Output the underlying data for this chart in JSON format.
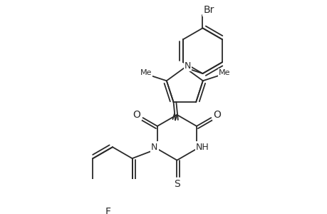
{
  "background_color": "#ffffff",
  "line_color": "#2a2a2a",
  "line_width": 1.3,
  "figure_size": [
    4.6,
    3.0
  ],
  "dpi": 100,
  "xlim": [
    0,
    460
  ],
  "ylim": [
    0,
    300
  ]
}
